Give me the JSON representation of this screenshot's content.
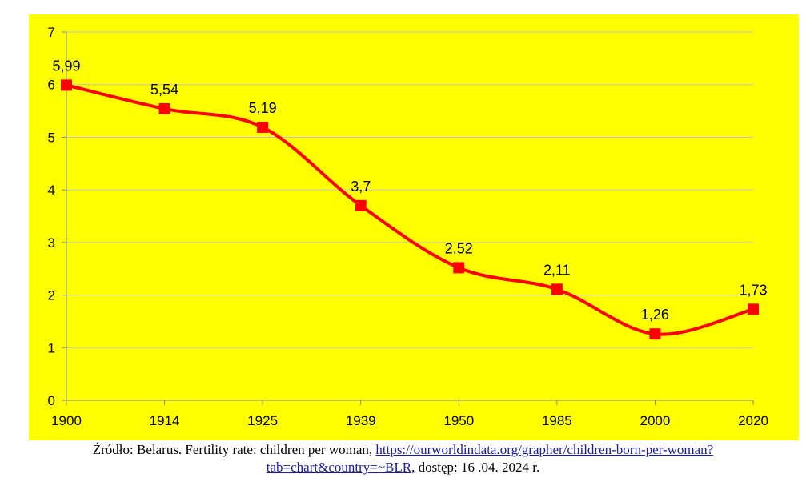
{
  "chart_data": {
    "type": "line",
    "title": "",
    "xlabel": "",
    "ylabel": "",
    "categories": [
      "1900",
      "1914",
      "1925",
      "1939",
      "1950",
      "1985",
      "2000",
      "2020"
    ],
    "series": [
      {
        "values": [
          5.99,
          5.54,
          5.19,
          3.7,
          2.52,
          2.11,
          1.26,
          1.73
        ],
        "labels": [
          "5,99",
          "5,54",
          "5,19",
          "3,7",
          "2,52",
          "2,11",
          "1,26",
          "1,73"
        ]
      }
    ],
    "ylim": [
      0,
      7
    ],
    "yticks": [
      "0",
      "1",
      "2",
      "3",
      "4",
      "5",
      "6",
      "7"
    ],
    "grid": true,
    "smooth": true,
    "marker": "square",
    "colors": {
      "background": "#ffff00",
      "line": "#ff0000",
      "marker": "#ff0000",
      "grid": "#c0c0c0",
      "axis": "#888888"
    }
  },
  "source": {
    "prefix": "Źródło: Belarus. Fertility rate: children per woman, ",
    "link_line1": "https://ourworldindata.org/grapher/children-born-per-woman?",
    "link_line2": "tab=chart&country=~BLR",
    "suffix": ", dostęp: 16 .04. 2024 r."
  }
}
